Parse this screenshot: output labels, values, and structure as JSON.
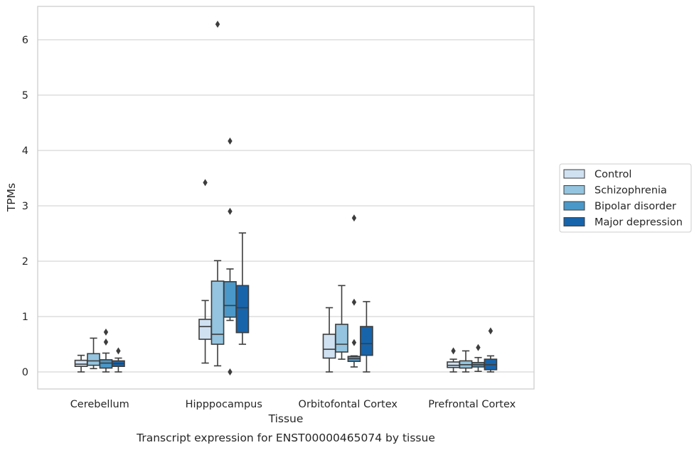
{
  "caption": "Transcript expression for ENST00000465074 by tissue",
  "chart_data": {
    "type": "box",
    "xlabel": "Tissue",
    "ylabel": "TPMs",
    "ylim": [
      -0.3,
      6.6
    ],
    "yticks": [
      0,
      1,
      2,
      3,
      4,
      5,
      6
    ],
    "grid": "horizontal",
    "legend_position": "right",
    "categories": [
      "Cerebellum",
      "Hipppocampus",
      "Orbitofontal Cortex",
      "Prefrontal Cortex"
    ],
    "series": [
      {
        "name": "Control",
        "color": "#d0e1f2",
        "boxes": [
          {
            "whisker_low": 0.0,
            "q1": 0.1,
            "median": 0.14,
            "q3": 0.21,
            "whisker_high": 0.3,
            "outliers": []
          },
          {
            "whisker_low": 0.16,
            "q1": 0.59,
            "median": 0.82,
            "q3": 0.95,
            "whisker_high": 1.29,
            "outliers": [
              3.42
            ]
          },
          {
            "whisker_low": 0.0,
            "q1": 0.25,
            "median": 0.41,
            "q3": 0.68,
            "whisker_high": 1.16,
            "outliers": []
          },
          {
            "whisker_low": 0.0,
            "q1": 0.08,
            "median": 0.12,
            "q3": 0.18,
            "whisker_high": 0.23,
            "outliers": [
              0.38
            ]
          }
        ]
      },
      {
        "name": "Schizophrenia",
        "color": "#94c4df",
        "boxes": [
          {
            "whisker_low": 0.06,
            "q1": 0.12,
            "median": 0.2,
            "q3": 0.33,
            "whisker_high": 0.61,
            "outliers": []
          },
          {
            "whisker_low": 0.11,
            "q1": 0.5,
            "median": 0.68,
            "q3": 1.64,
            "whisker_high": 2.01,
            "outliers": [
              6.28
            ]
          },
          {
            "whisker_low": 0.23,
            "q1": 0.36,
            "median": 0.5,
            "q3": 0.86,
            "whisker_high": 1.56,
            "outliers": []
          },
          {
            "whisker_low": 0.0,
            "q1": 0.07,
            "median": 0.13,
            "q3": 0.2,
            "whisker_high": 0.38,
            "outliers": []
          }
        ]
      },
      {
        "name": "Bipolar disorder",
        "color": "#4a98c9",
        "boxes": [
          {
            "whisker_low": 0.0,
            "q1": 0.07,
            "median": 0.16,
            "q3": 0.22,
            "whisker_high": 0.34,
            "outliers": [
              0.54,
              0.72
            ]
          },
          {
            "whisker_low": 0.93,
            "q1": 0.99,
            "median": 1.2,
            "q3": 1.63,
            "whisker_high": 1.86,
            "outliers": [
              2.9,
              4.17,
              0.0
            ]
          },
          {
            "whisker_low": 0.09,
            "q1": 0.19,
            "median": 0.24,
            "q3": 0.28,
            "whisker_high": 0.29,
            "outliers": [
              0.53,
              1.26,
              2.78
            ]
          },
          {
            "whisker_low": 0.01,
            "q1": 0.09,
            "median": 0.13,
            "q3": 0.17,
            "whisker_high": 0.26,
            "outliers": [
              0.44
            ]
          }
        ]
      },
      {
        "name": "Major depression",
        "color": "#1764ab",
        "boxes": [
          {
            "whisker_low": 0.0,
            "q1": 0.1,
            "median": 0.15,
            "q3": 0.2,
            "whisker_high": 0.25,
            "outliers": [
              0.38
            ]
          },
          {
            "whisker_low": 0.5,
            "q1": 0.71,
            "median": 1.16,
            "q3": 1.56,
            "whisker_high": 2.51,
            "outliers": []
          },
          {
            "whisker_low": 0.0,
            "q1": 0.3,
            "median": 0.51,
            "q3": 0.82,
            "whisker_high": 1.27,
            "outliers": []
          },
          {
            "whisker_low": 0.0,
            "q1": 0.04,
            "median": 0.13,
            "q3": 0.23,
            "whisker_high": 0.29,
            "outliers": [
              0.74
            ]
          }
        ]
      }
    ]
  }
}
